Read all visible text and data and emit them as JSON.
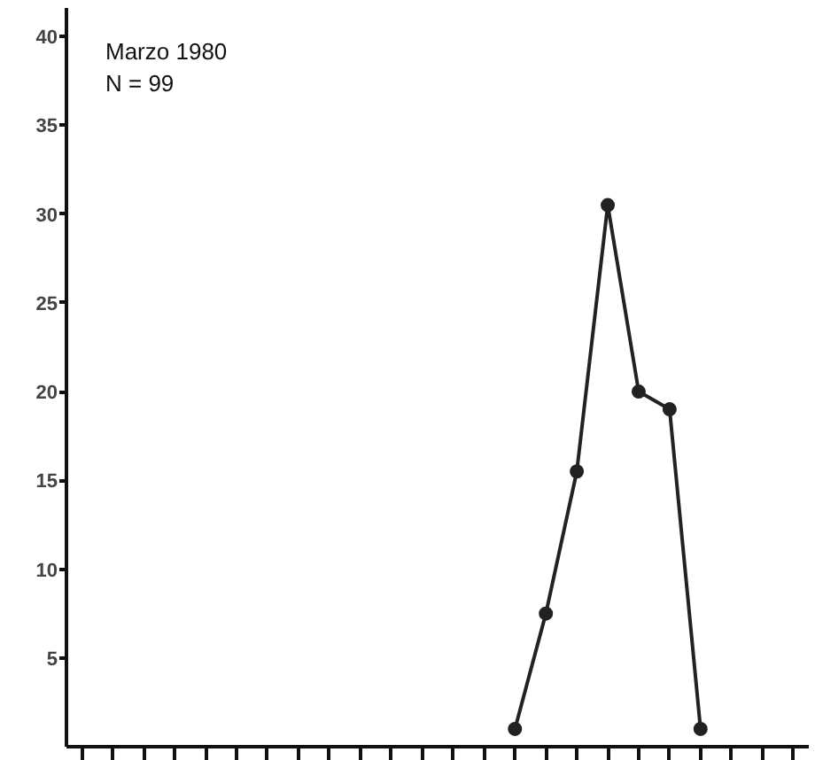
{
  "chart_data": {
    "type": "line",
    "categories": [
      null,
      null,
      null,
      null,
      null,
      null,
      null,
      null,
      null,
      null,
      null,
      null,
      null,
      null,
      null,
      null,
      null,
      null,
      null,
      null,
      null,
      null,
      null,
      null
    ],
    "series": [
      {
        "color": "#222222",
        "values": [
          null,
          null,
          null,
          null,
          null,
          null,
          null,
          null,
          null,
          null,
          null,
          null,
          null,
          null,
          1,
          7.5,
          15.5,
          30.5,
          20,
          19,
          1,
          null,
          null,
          null
        ]
      }
    ],
    "annotations": [
      "Marzo 1980",
      "N = 99"
    ],
    "ylim": [
      0,
      41.6
    ],
    "yticks": [
      5,
      10,
      15,
      20,
      25,
      30,
      35,
      40
    ],
    "tick_labels": "y",
    "grid": false,
    "marker": "circle",
    "line_style": "solid"
  }
}
